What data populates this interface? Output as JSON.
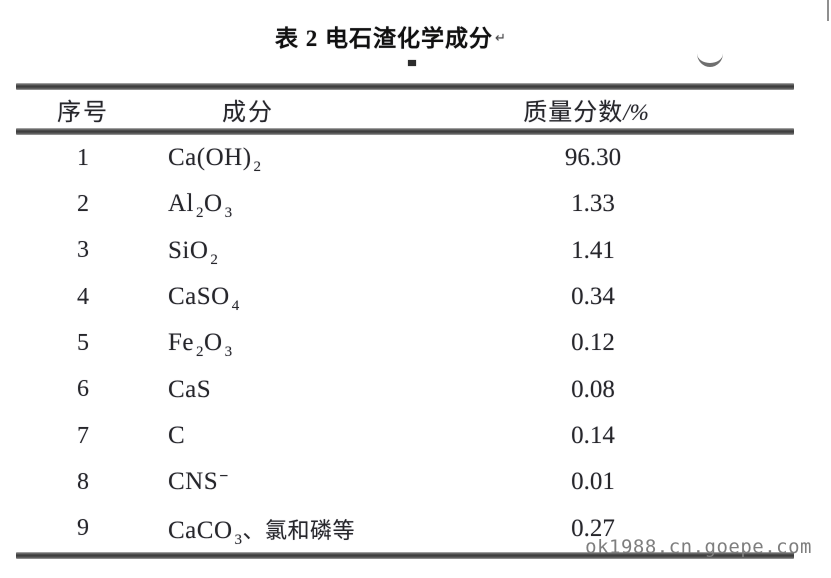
{
  "title": {
    "text": "表 2 电石渣化学成分",
    "paragraph_mark": "↵"
  },
  "table": {
    "headers": {
      "no": "序号",
      "component": "成分",
      "mass_fraction_label": "质量分数",
      "mass_fraction_unit": "/%"
    },
    "rows": [
      {
        "no": "1",
        "formula": [
          {
            "t": "Ca(OH)"
          },
          {
            "t": "2",
            "type": "sub"
          }
        ],
        "value": "96.30"
      },
      {
        "no": "2",
        "formula": [
          {
            "t": "Al"
          },
          {
            "t": "2",
            "type": "sub"
          },
          {
            "t": "O"
          },
          {
            "t": "3",
            "type": "sub"
          }
        ],
        "value": "1.33"
      },
      {
        "no": "3",
        "formula": [
          {
            "t": "SiO"
          },
          {
            "t": "2",
            "type": "sub"
          }
        ],
        "value": "1.41"
      },
      {
        "no": "4",
        "formula": [
          {
            "t": "CaSO"
          },
          {
            "t": "4",
            "type": "sub"
          }
        ],
        "value": "0.34"
      },
      {
        "no": "5",
        "formula": [
          {
            "t": "Fe"
          },
          {
            "t": "2",
            "type": "sub"
          },
          {
            "t": "O"
          },
          {
            "t": "3",
            "type": "sub"
          }
        ],
        "value": "0.12"
      },
      {
        "no": "6",
        "formula": [
          {
            "t": "CaS"
          }
        ],
        "value": "0.08"
      },
      {
        "no": "7",
        "formula": [
          {
            "t": "C"
          }
        ],
        "value": "0.14"
      },
      {
        "no": "8",
        "formula": [
          {
            "t": "CNS"
          },
          {
            "t": "−",
            "type": "sup"
          }
        ],
        "value": "0.01"
      },
      {
        "no": "9",
        "formula": [
          {
            "t": "CaCO"
          },
          {
            "t": "3",
            "type": "sub"
          },
          {
            "t": "、氯和磷等",
            "type": "cjk"
          }
        ],
        "value": "0.27"
      }
    ]
  },
  "watermark": {
    "text": "ok1988.cn.goepe.com"
  },
  "colors": {
    "background": "#ffffff",
    "text": "#26262a",
    "rule_dark": "#3a3a3a",
    "watermark": "#7e7e7e"
  }
}
